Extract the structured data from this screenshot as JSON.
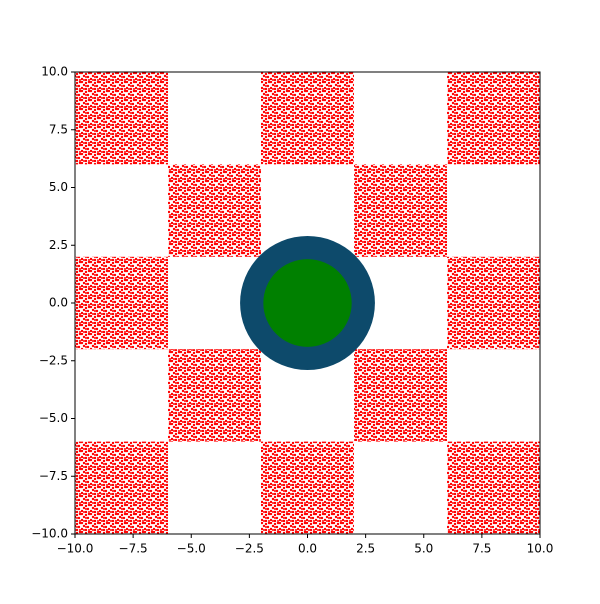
{
  "chart_data": {
    "type": "scatter",
    "xlim": [
      -10,
      10
    ],
    "ylim": [
      -10,
      10
    ],
    "xticks": [
      {
        "value": -10,
        "label": "−10.0"
      },
      {
        "value": -7.5,
        "label": "−7.5"
      },
      {
        "value": -5,
        "label": "−5.0"
      },
      {
        "value": -2.5,
        "label": "−2.5"
      },
      {
        "value": 0,
        "label": "0.0"
      },
      {
        "value": 2.5,
        "label": "2.5"
      },
      {
        "value": 5,
        "label": "5.0"
      },
      {
        "value": 7.5,
        "label": "7.5"
      },
      {
        "value": 10,
        "label": "10.0"
      }
    ],
    "yticks": [
      {
        "value": -10,
        "label": "−10.0"
      },
      {
        "value": -7.5,
        "label": "−7.5"
      },
      {
        "value": -5,
        "label": "−5.0"
      },
      {
        "value": -2.5,
        "label": "−2.5"
      },
      {
        "value": 0,
        "label": "0.0"
      },
      {
        "value": 2.5,
        "label": "2.5"
      },
      {
        "value": 5,
        "label": "5.0"
      },
      {
        "value": 7.5,
        "label": "7.5"
      },
      {
        "value": 10,
        "label": "10.0"
      }
    ],
    "series": [
      {
        "color": "#ff0000",
        "rects": [
          [
            -10,
            -6,
            6,
            10
          ],
          [
            -2,
            2,
            6,
            10
          ],
          [
            6,
            10,
            6,
            10
          ],
          [
            -6,
            -2,
            2,
            6
          ],
          [
            2,
            6,
            2,
            6
          ],
          [
            -10,
            -6,
            -2,
            2
          ],
          [
            6,
            10,
            -2,
            2
          ],
          [
            -6,
            -2,
            -6,
            -2
          ],
          [
            2,
            6,
            -6,
            -2
          ],
          [
            -10,
            -6,
            -10,
            -6
          ],
          [
            -2,
            2,
            -10,
            -6
          ],
          [
            6,
            10,
            -10,
            -6
          ]
        ]
      },
      {
        "color": "#0d4a6b",
        "circles": [
          [
            0,
            0,
            2.9
          ]
        ]
      },
      {
        "color": "#008000",
        "circles": [
          [
            0,
            0,
            1.9
          ]
        ]
      }
    ]
  }
}
